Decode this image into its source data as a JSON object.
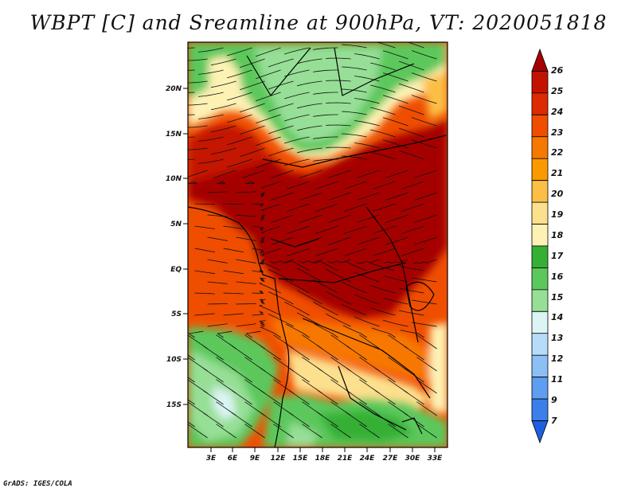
{
  "title": "WBPT [C] and Sreamline at 900hPa, VT: 2020051818",
  "credit": "GrADS: IGES/COLA",
  "lat_labels": [
    "20N",
    "15N",
    "10N",
    "5N",
    "EQ",
    "5S",
    "10S",
    "15S"
  ],
  "lon_labels": [
    "3E",
    "6E",
    "9E",
    "12E",
    "15E",
    "18E",
    "21E",
    "24E",
    "27E",
    "30E",
    "33E"
  ],
  "colorbar": {
    "labels": [
      "26",
      "25",
      "24",
      "23",
      "22",
      "21",
      "20",
      "19",
      "18",
      "17",
      "16",
      "15",
      "14",
      "13",
      "12",
      "11",
      "9",
      "7"
    ],
    "colors": [
      "#a50000",
      "#c41200",
      "#dd2a00",
      "#ef4e00",
      "#f77800",
      "#fb9a00",
      "#fcbf45",
      "#fde08e",
      "#fdf2b4",
      "#35b035",
      "#5cc85c",
      "#97df97",
      "#dcf4f4",
      "#b6dcfa",
      "#8cc0f4",
      "#5e9ef0",
      "#3c7eea",
      "#1f5ee0"
    ]
  },
  "colors": {
    "land_green": "#5cc85c",
    "light_green": "#97df97",
    "dark_green": "#35b035",
    "hot": "#a50000",
    "orange": "#ef4e00",
    "yellow": "#fde08e"
  }
}
